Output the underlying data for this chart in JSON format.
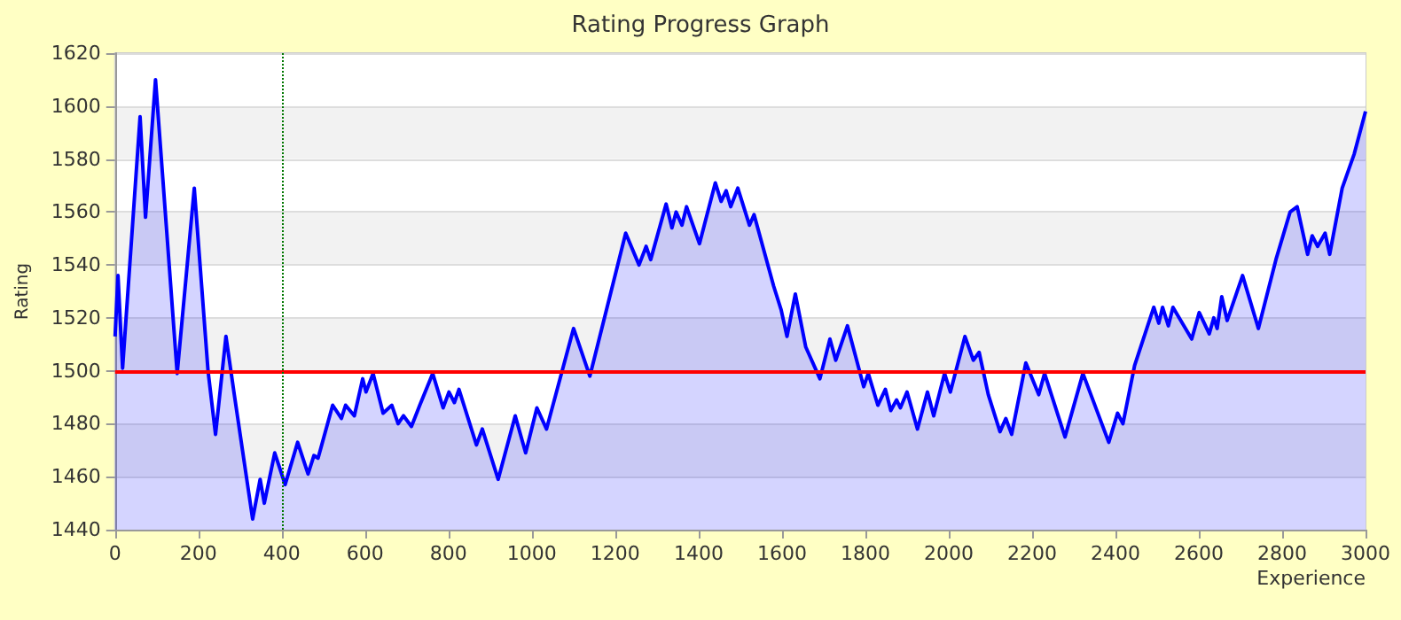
{
  "chart_data": {
    "type": "area",
    "title": "Rating Progress Graph",
    "xlabel": "Experience",
    "ylabel": "Rating",
    "x": [
      0,
      7,
      18,
      60,
      73,
      97,
      149,
      190,
      223,
      241,
      266,
      286,
      330,
      348,
      358,
      383,
      408,
      438,
      463,
      477,
      487,
      522,
      543,
      553,
      574,
      594,
      602,
      619,
      643,
      664,
      679,
      692,
      711,
      731,
      762,
      787,
      801,
      814,
      825,
      867,
      881,
      919,
      960,
      985,
      1012,
      1035,
      1100,
      1139,
      1225,
      1257,
      1274,
      1285,
      1322,
      1336,
      1346,
      1360,
      1371,
      1402,
      1440,
      1454,
      1466,
      1477,
      1494,
      1522,
      1533,
      1580,
      1598,
      1612,
      1632,
      1657,
      1691,
      1715,
      1729,
      1757,
      1796,
      1807,
      1830,
      1848,
      1861,
      1875,
      1884,
      1900,
      1925,
      1949,
      1964,
      1990,
      2004,
      2039,
      2059,
      2073,
      2095,
      2123,
      2137,
      2151,
      2185,
      2216,
      2230,
      2279,
      2322,
      2384,
      2405,
      2418,
      2446,
      2492,
      2504,
      2513,
      2527,
      2538,
      2583,
      2601,
      2625,
      2636,
      2644,
      2655,
      2668,
      2705,
      2743,
      2785,
      2819,
      2836,
      2861,
      2872,
      2885,
      2903,
      2914,
      2944,
      2973,
      3000
    ],
    "series": [
      {
        "color": "#0000ff",
        "values": [
          1513,
          1536,
          1501,
          1596,
          1558,
          1610,
          1499,
          1569,
          1500,
          1476,
          1513,
          1491,
          1444,
          1459,
          1450,
          1469,
          1457,
          1473,
          1461,
          1468,
          1467,
          1487,
          1482,
          1487,
          1483,
          1497,
          1492,
          1499,
          1484,
          1487,
          1480,
          1483,
          1479,
          1487,
          1499,
          1486,
          1492,
          1488,
          1493,
          1472,
          1478,
          1459,
          1483,
          1469,
          1486,
          1478,
          1516,
          1498,
          1552,
          1540,
          1547,
          1542,
          1563,
          1554,
          1560,
          1555,
          1562,
          1548,
          1571,
          1564,
          1568,
          1562,
          1569,
          1555,
          1559,
          1532,
          1523,
          1513,
          1529,
          1509,
          1497,
          1512,
          1504,
          1517,
          1494,
          1499,
          1487,
          1493,
          1485,
          1489,
          1486,
          1492,
          1478,
          1492,
          1483,
          1499,
          1492,
          1513,
          1504,
          1507,
          1491,
          1477,
          1482,
          1476,
          1503,
          1491,
          1499,
          1475,
          1499,
          1473,
          1484,
          1480,
          1502,
          1524,
          1518,
          1524,
          1517,
          1524,
          1512,
          1522,
          1514,
          1520,
          1516,
          1528,
          1519,
          1536,
          1516,
          1542,
          1560,
          1562,
          1544,
          1551,
          1547,
          1552,
          1544,
          1569,
          1582,
          1598
        ]
      }
    ],
    "xlim": [
      0,
      3000
    ],
    "xticks": [
      0,
      200,
      400,
      600,
      800,
      1000,
      1200,
      1400,
      1600,
      1800,
      2000,
      2200,
      2400,
      2600,
      2800,
      3000
    ],
    "ylim": [
      1440,
      1620
    ],
    "yticks": [
      1440,
      1460,
      1480,
      1500,
      1520,
      1540,
      1560,
      1580,
      1600,
      1620
    ],
    "grid": "y",
    "marker": "none",
    "line_style": "solid",
    "ref_lines": [
      {
        "axis": "y",
        "value": 1500,
        "color": "#ff0000",
        "line_style": "solid"
      },
      {
        "axis": "x",
        "value": 400,
        "color": "#007700",
        "line_style": "dotted"
      }
    ]
  }
}
